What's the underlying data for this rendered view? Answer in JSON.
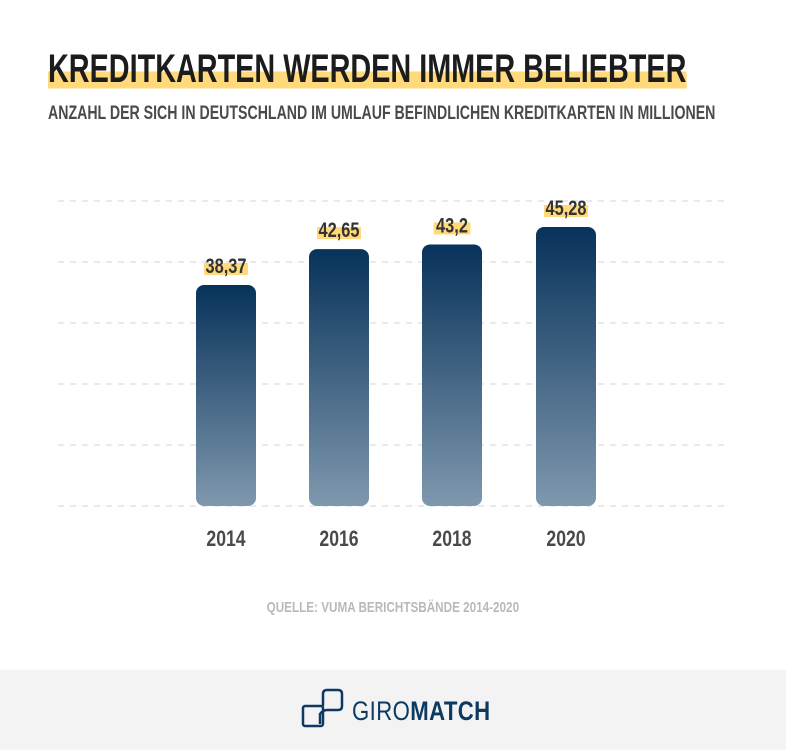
{
  "title": "KREDITKARTEN WERDEN IMMER BELIEBTER",
  "subtitle": "ANZAHL DER SICH IN DEUTSCHLAND IM UMLAUF BEFINDLICHEN KREDITKARTEN IN MILLIONEN",
  "source": "QUELLE: VUMA BERICHTSBÄNDE 2014-2020",
  "footer": {
    "logo_light": "GIRO",
    "logo_bold": "MATCH"
  },
  "colors": {
    "bar_top": "#07325a",
    "bar_bottom": "#7f98ae",
    "label_highlight": "#ffd97a",
    "brand": "#0e3a61"
  },
  "chart_data": {
    "type": "bar",
    "categories": [
      "2014",
      "2016",
      "2018",
      "2020"
    ],
    "values": [
      38.37,
      42.65,
      43.2,
      45.28
    ],
    "data_labels": [
      "38,37",
      "42,65",
      "43,2",
      "45,28"
    ],
    "grid": "horizontal dashed",
    "title": "KREDITKARTEN WERDEN IMMER BELIEBTER",
    "ylabel": "",
    "xlabel": ""
  }
}
